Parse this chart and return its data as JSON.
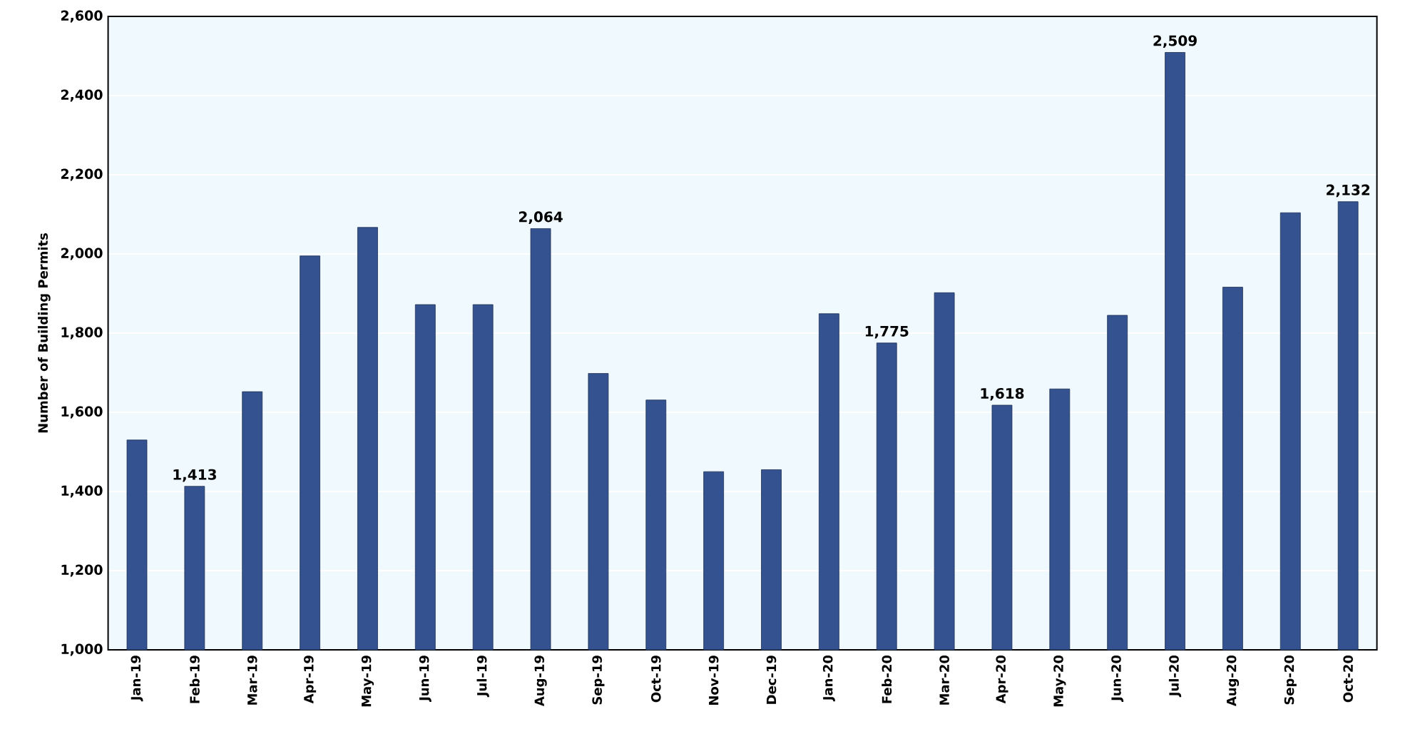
{
  "chart_data": {
    "type": "bar",
    "ylabel": "Number of Building Permits",
    "categories": [
      "Jan-19",
      "Feb-19",
      "Mar-19",
      "Apr-19",
      "May-19",
      "Jun-19",
      "Jul-19",
      "Aug-19",
      "Sep-19",
      "Oct-19",
      "Nov-19",
      "Dec-19",
      "Jan-20",
      "Feb-20",
      "Mar-20",
      "Apr-20",
      "May-20",
      "Jun-20",
      "Jul-20",
      "Aug-20",
      "Sep-20",
      "Oct-20"
    ],
    "values": [
      1530,
      1413,
      1652,
      1995,
      2067,
      1872,
      1872,
      2064,
      1698,
      1631,
      1450,
      1455,
      1849,
      1775,
      1902,
      1618,
      1659,
      1845,
      2509,
      1916,
      2104,
      2132
    ],
    "value_labels": [
      null,
      "1,413",
      null,
      null,
      null,
      null,
      null,
      "2,064",
      null,
      null,
      null,
      null,
      null,
      "1,775",
      null,
      "1,618",
      null,
      null,
      "2,509",
      null,
      null,
      "2,132"
    ],
    "color": "#34528f",
    "ylim": [
      1000,
      2600
    ],
    "yticks": [
      {
        "value": 1000,
        "label": "1,000"
      },
      {
        "value": 1200,
        "label": "1,200"
      },
      {
        "value": 1400,
        "label": "1,400"
      },
      {
        "value": 1600,
        "label": "1,600"
      },
      {
        "value": 1800,
        "label": "1,800"
      },
      {
        "value": 2000,
        "label": "2,000"
      },
      {
        "value": 2200,
        "label": "2,200"
      },
      {
        "value": 2400,
        "label": "2,400"
      },
      {
        "value": 2600,
        "label": "2,600"
      }
    ],
    "grid": "y"
  }
}
